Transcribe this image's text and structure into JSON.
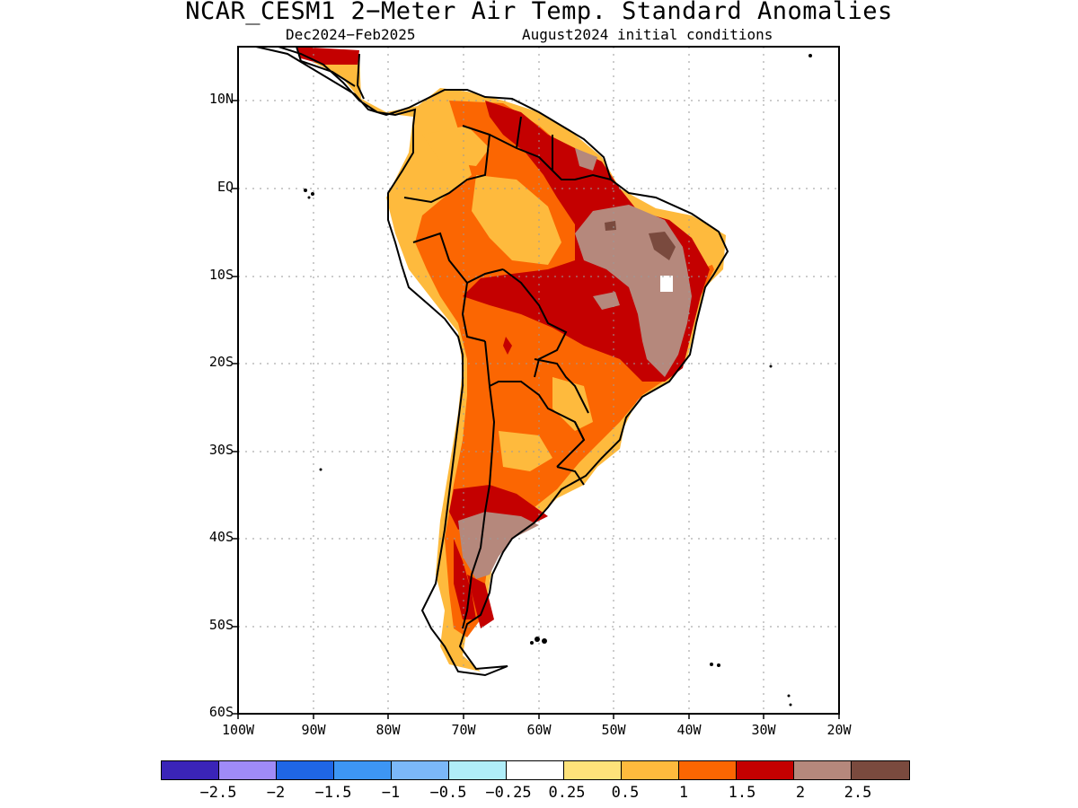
{
  "title": "NCAR_CESM1 2−Meter Air Temp. Standard Anomalies",
  "subtitle_left": "Dec2024−Feb2025",
  "subtitle_right": "August2024 initial conditions",
  "lat_labels": [
    "10N",
    "EQ",
    "10S",
    "20S",
    "30S",
    "40S",
    "50S",
    "60S"
  ],
  "lon_labels": [
    "100W",
    "90W",
    "80W",
    "70W",
    "60W",
    "50W",
    "40W",
    "30W",
    "20W"
  ],
  "colorbar": {
    "colors": [
      "#3a24b8",
      "#9f8bf7",
      "#1f66e5",
      "#3d96f4",
      "#7bb8f9",
      "#b0edf8",
      "#ffffff",
      "#fee27a",
      "#feba3d",
      "#fb6602",
      "#c40000",
      "#b5887c",
      "#7a4a3e"
    ],
    "tick_labels": [
      "−2.5",
      "−2",
      "−1.5",
      "−1",
      "−0.5",
      "−0.25",
      "0.25",
      "0.5",
      "1",
      "1.5",
      "2",
      "2.5"
    ]
  },
  "icons": {
    "map": "south-america-anomaly-map"
  }
}
